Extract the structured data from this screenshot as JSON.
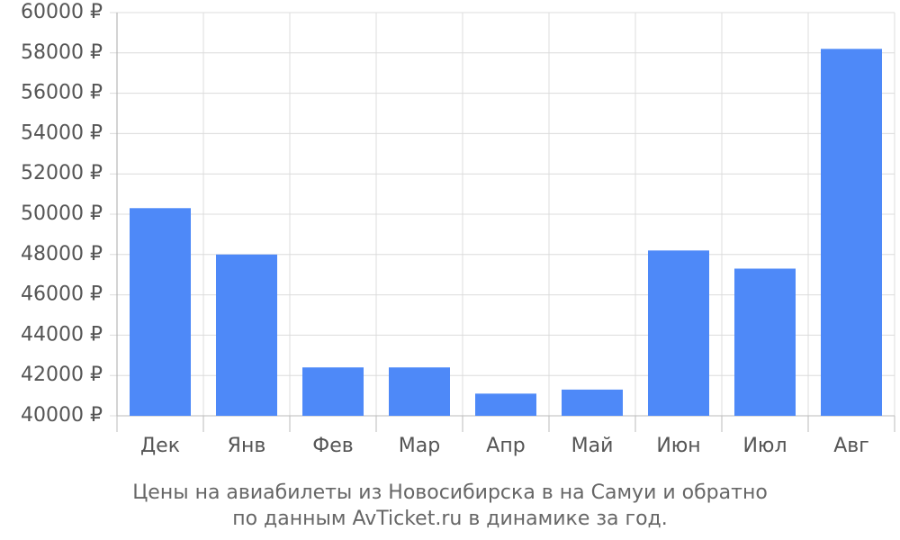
{
  "chart_data": {
    "type": "bar",
    "title": [
      "Цены на авиабилеты из Новосибирска в на Самуи и обратно",
      "по данным AvTicket.ru в динамике за год."
    ],
    "categories": [
      "Дек",
      "Янв",
      "Фев",
      "Мар",
      "Апр",
      "Май",
      "Июн",
      "Июл",
      "Авг"
    ],
    "values": [
      50300,
      48000,
      42400,
      42400,
      41100,
      41300,
      48200,
      47300,
      58200
    ],
    "color": "#4e89f8",
    "ylim": [
      40000,
      60000
    ],
    "yticks": [
      {
        "value": 40000,
        "label": "40000 ₽"
      },
      {
        "value": 42000,
        "label": "42000 ₽"
      },
      {
        "value": 44000,
        "label": "44000 ₽"
      },
      {
        "value": 46000,
        "label": "46000 ₽"
      },
      {
        "value": 48000,
        "label": "48000 ₽"
      },
      {
        "value": 50000,
        "label": "50000 ₽"
      },
      {
        "value": 52000,
        "label": "52000 ₽"
      },
      {
        "value": 54000,
        "label": "54000 ₽"
      },
      {
        "value": 56000,
        "label": "56000 ₽"
      },
      {
        "value": 58000,
        "label": "58000 ₽"
      },
      {
        "value": 60000,
        "label": "60000 ₽"
      }
    ],
    "grid": true
  }
}
